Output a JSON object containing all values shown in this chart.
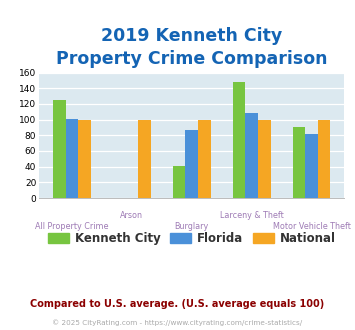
{
  "title_line1": "2019 Kenneth City",
  "title_line2": "Property Crime Comparison",
  "categories": [
    "All Property Crime",
    "Arson",
    "Burglary",
    "Larceny & Theft",
    "Motor Vehicle Theft"
  ],
  "series": {
    "Kenneth City": [
      125,
      0,
      41,
      148,
      90
    ],
    "Florida": [
      101,
      0,
      87,
      108,
      82
    ],
    "National": [
      100,
      100,
      100,
      100,
      100
    ]
  },
  "colors": {
    "Kenneth City": "#77c540",
    "Florida": "#4a90d9",
    "National": "#f5a623"
  },
  "ylim": [
    0,
    160
  ],
  "yticks": [
    0,
    20,
    40,
    60,
    80,
    100,
    120,
    140,
    160
  ],
  "bar_width": 0.21,
  "plot_bg": "#dce9f0",
  "grid_color": "#ffffff",
  "footnote1": "Compared to U.S. average. (U.S. average equals 100)",
  "footnote2": "© 2025 CityRating.com - https://www.cityrating.com/crime-statistics/",
  "title_color": "#1464b4",
  "xlabel_color": "#9e7bb5",
  "footnote1_color": "#8b0000",
  "footnote2_color": "#aaaaaa",
  "legend_fontsize": 8.5,
  "title_fontsize": 12.5
}
